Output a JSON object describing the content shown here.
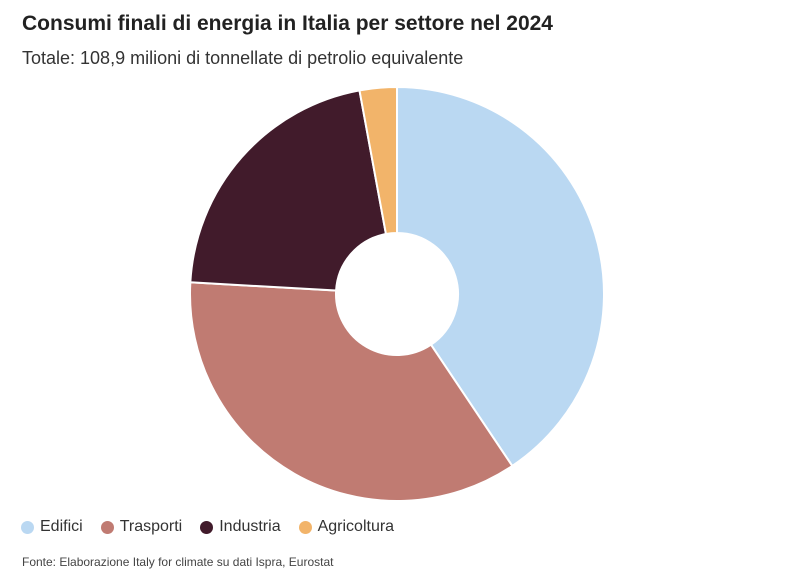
{
  "title": "Consumi finali di energia in Italia per settore nel 2024",
  "subtitle": "Totale: 108,9 milioni di tonnellate di petrolio equivalente",
  "source": "Fonte: Elaborazione Italy for climate su dati Ispra, Eurostat",
  "chart_data": {
    "type": "pie",
    "donut": true,
    "title": "Consumi finali di energia in Italia per settore nel 2024",
    "subtitle": "Totale: 108,9 milioni di tonnellate di petrolio equivalente",
    "unit": "%",
    "legend_position": "bottom-left",
    "categories": [
      "Edifici",
      "Trasporti",
      "Industria",
      "Agricoltura"
    ],
    "values": [
      40.6,
      35.3,
      21.2,
      2.9
    ],
    "colors": [
      "#bad8f2",
      "#c07b72",
      "#411b2b",
      "#f2b46a"
    ]
  }
}
